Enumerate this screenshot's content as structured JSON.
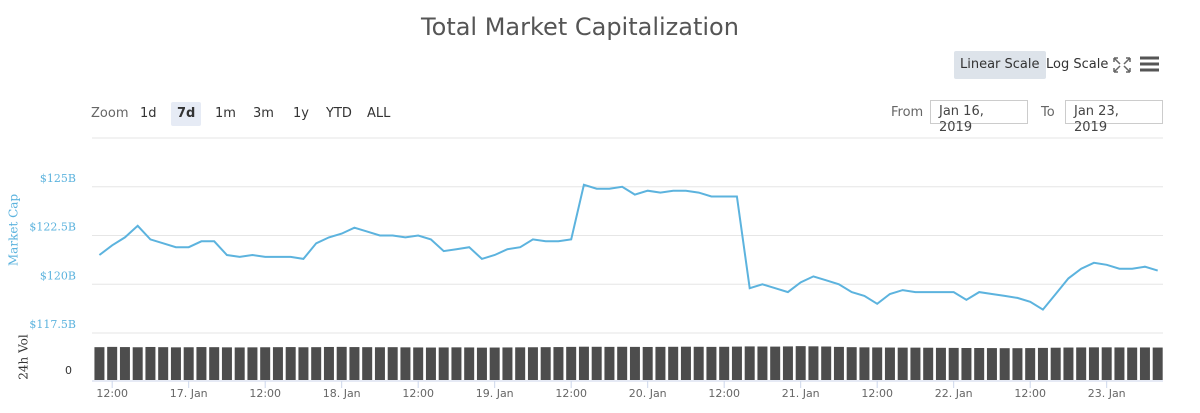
{
  "chart_data": {
    "type": "line",
    "title": "Total Market Capitalization",
    "x": [
      "2019-01-16T10:00",
      "2019-01-16T12:00",
      "2019-01-16T14:00",
      "2019-01-16T16:00",
      "2019-01-16T18:00",
      "2019-01-16T20:00",
      "2019-01-16T22:00",
      "2019-01-17T00:00",
      "2019-01-17T02:00",
      "2019-01-17T04:00",
      "2019-01-17T06:00",
      "2019-01-17T08:00",
      "2019-01-17T10:00",
      "2019-01-17T12:00",
      "2019-01-17T14:00",
      "2019-01-17T16:00",
      "2019-01-17T18:00",
      "2019-01-17T20:00",
      "2019-01-17T22:00",
      "2019-01-18T00:00",
      "2019-01-18T02:00",
      "2019-01-18T04:00",
      "2019-01-18T06:00",
      "2019-01-18T08:00",
      "2019-01-18T10:00",
      "2019-01-18T12:00",
      "2019-01-18T14:00",
      "2019-01-18T16:00",
      "2019-01-18T18:00",
      "2019-01-18T20:00",
      "2019-01-18T22:00",
      "2019-01-19T00:00",
      "2019-01-19T02:00",
      "2019-01-19T04:00",
      "2019-01-19T06:00",
      "2019-01-19T08:00",
      "2019-01-19T10:00",
      "2019-01-19T12:00",
      "2019-01-19T14:00",
      "2019-01-19T16:00",
      "2019-01-19T18:00",
      "2019-01-19T20:00",
      "2019-01-19T22:00",
      "2019-01-20T00:00",
      "2019-01-20T02:00",
      "2019-01-20T04:00",
      "2019-01-20T06:00",
      "2019-01-20T08:00",
      "2019-01-20T10:00",
      "2019-01-20T12:00",
      "2019-01-20T14:00",
      "2019-01-20T16:00",
      "2019-01-20T18:00",
      "2019-01-20T20:00",
      "2019-01-20T22:00",
      "2019-01-21T00:00",
      "2019-01-21T02:00",
      "2019-01-21T04:00",
      "2019-01-21T06:00",
      "2019-01-21T08:00",
      "2019-01-21T10:00",
      "2019-01-21T12:00",
      "2019-01-21T14:00",
      "2019-01-21T16:00",
      "2019-01-21T18:00",
      "2019-01-21T20:00",
      "2019-01-21T22:00",
      "2019-01-22T00:00",
      "2019-01-22T02:00",
      "2019-01-22T04:00",
      "2019-01-22T06:00",
      "2019-01-22T08:00",
      "2019-01-22T10:00",
      "2019-01-22T12:00",
      "2019-01-22T14:00",
      "2019-01-22T16:00",
      "2019-01-22T18:00",
      "2019-01-22T20:00",
      "2019-01-22T22:00",
      "2019-01-23T00:00",
      "2019-01-23T02:00",
      "2019-01-23T04:00",
      "2019-01-23T06:00",
      "2019-01-23T08:00"
    ],
    "xlim": [
      "2019-01-16T08:50",
      "2019-01-23T08:50"
    ],
    "xticks": [
      {
        "value": "2019-01-16T12:00",
        "label": "12:00"
      },
      {
        "value": "2019-01-17T00:00",
        "label": "17. Jan"
      },
      {
        "value": "2019-01-17T12:00",
        "label": "12:00"
      },
      {
        "value": "2019-01-18T00:00",
        "label": "18. Jan"
      },
      {
        "value": "2019-01-18T12:00",
        "label": "12:00"
      },
      {
        "value": "2019-01-19T00:00",
        "label": "19. Jan"
      },
      {
        "value": "2019-01-19T12:00",
        "label": "12:00"
      },
      {
        "value": "2019-01-20T00:00",
        "label": "20. Jan"
      },
      {
        "value": "2019-01-20T12:00",
        "label": "12:00"
      },
      {
        "value": "2019-01-21T00:00",
        "label": "21. Jan"
      },
      {
        "value": "2019-01-21T12:00",
        "label": "12:00"
      },
      {
        "value": "2019-01-22T00:00",
        "label": "22. Jan"
      },
      {
        "value": "2019-01-22T12:00",
        "label": "12:00"
      },
      {
        "value": "2019-01-23T00:00",
        "label": "23. Jan"
      }
    ],
    "ylabel": "Market Cap",
    "ylim": [
      117.5,
      127.5
    ],
    "yticks": [
      {
        "value": 117.5,
        "label": "$117.5B"
      },
      {
        "value": 120,
        "label": "$120B"
      },
      {
        "value": 122.5,
        "label": "$122.5B"
      },
      {
        "value": 125,
        "label": "$125B"
      }
    ],
    "y2label": "24h Vol",
    "y2lim": [
      0,
      40
    ],
    "y2ticks": [
      0
    ],
    "grid": true,
    "log_scale": false,
    "series": [
      {
        "type": "line",
        "color": "#5cb3de",
        "values": [
          121.5,
          122.0,
          122.4,
          123.0,
          122.3,
          122.1,
          121.9,
          121.9,
          122.2,
          122.2,
          121.5,
          121.4,
          121.5,
          121.4,
          121.4,
          121.4,
          121.3,
          122.1,
          122.4,
          122.6,
          122.9,
          122.7,
          122.5,
          122.5,
          122.4,
          122.5,
          122.3,
          121.7,
          121.8,
          121.9,
          121.3,
          121.5,
          121.8,
          121.9,
          122.3,
          122.2,
          122.2,
          122.3,
          125.1,
          124.9,
          124.9,
          125.0,
          124.6,
          124.8,
          124.7,
          124.8,
          124.8,
          124.7,
          124.5,
          124.5,
          124.5,
          119.8,
          120.0,
          119.8,
          119.6,
          120.1,
          120.4,
          120.2,
          120.0,
          119.6,
          119.4,
          119.0,
          119.5,
          119.7,
          119.6,
          119.6,
          119.6,
          119.6,
          119.2,
          119.6,
          119.5,
          119.4,
          119.3,
          119.1,
          118.7,
          119.5,
          120.3,
          120.8,
          121.1,
          121.0,
          120.8,
          120.8,
          120.9,
          120.7
        ]
      },
      {
        "type": "bar",
        "axis": "y2",
        "color": "#4d4d4d",
        "values": [
          35.5,
          35.8,
          35.6,
          35.4,
          35.7,
          35.5,
          35.3,
          35.4,
          35.6,
          35.5,
          35.3,
          35.2,
          35.3,
          35.4,
          35.5,
          35.6,
          35.4,
          35.5,
          35.7,
          35.8,
          35.6,
          35.5,
          35.4,
          35.5,
          35.3,
          35.2,
          35.1,
          35.2,
          35.3,
          35.2,
          35.0,
          35.1,
          35.2,
          35.3,
          35.4,
          35.5,
          35.6,
          35.8,
          36.0,
          35.9,
          35.8,
          35.9,
          35.8,
          35.7,
          35.8,
          35.9,
          36.0,
          35.9,
          35.8,
          35.9,
          36.1,
          36.3,
          36.2,
          36.1,
          36.3,
          36.6,
          36.4,
          36.2,
          35.8,
          35.5,
          35.3,
          35.2,
          35.1,
          35.0,
          35.0,
          34.9,
          34.8,
          34.7,
          34.6,
          34.6,
          34.5,
          34.4,
          34.4,
          34.5,
          34.7,
          34.9,
          35.1,
          35.2,
          35.3,
          35.3,
          35.2,
          35.1,
          35.2,
          35.1
        ]
      }
    ]
  },
  "controls": {
    "scale_buttons": [
      "Linear Scale",
      "Log Scale"
    ],
    "active_scale": 0,
    "zoom_label": "Zoom",
    "zoom_buttons": [
      "1d",
      "7d",
      "1m",
      "3m",
      "1y",
      "YTD",
      "ALL"
    ],
    "active_zoom": 1,
    "from_label": "From",
    "from": "Jan 16, 2019",
    "to_label": "To",
    "to": "Jan 23, 2019"
  }
}
